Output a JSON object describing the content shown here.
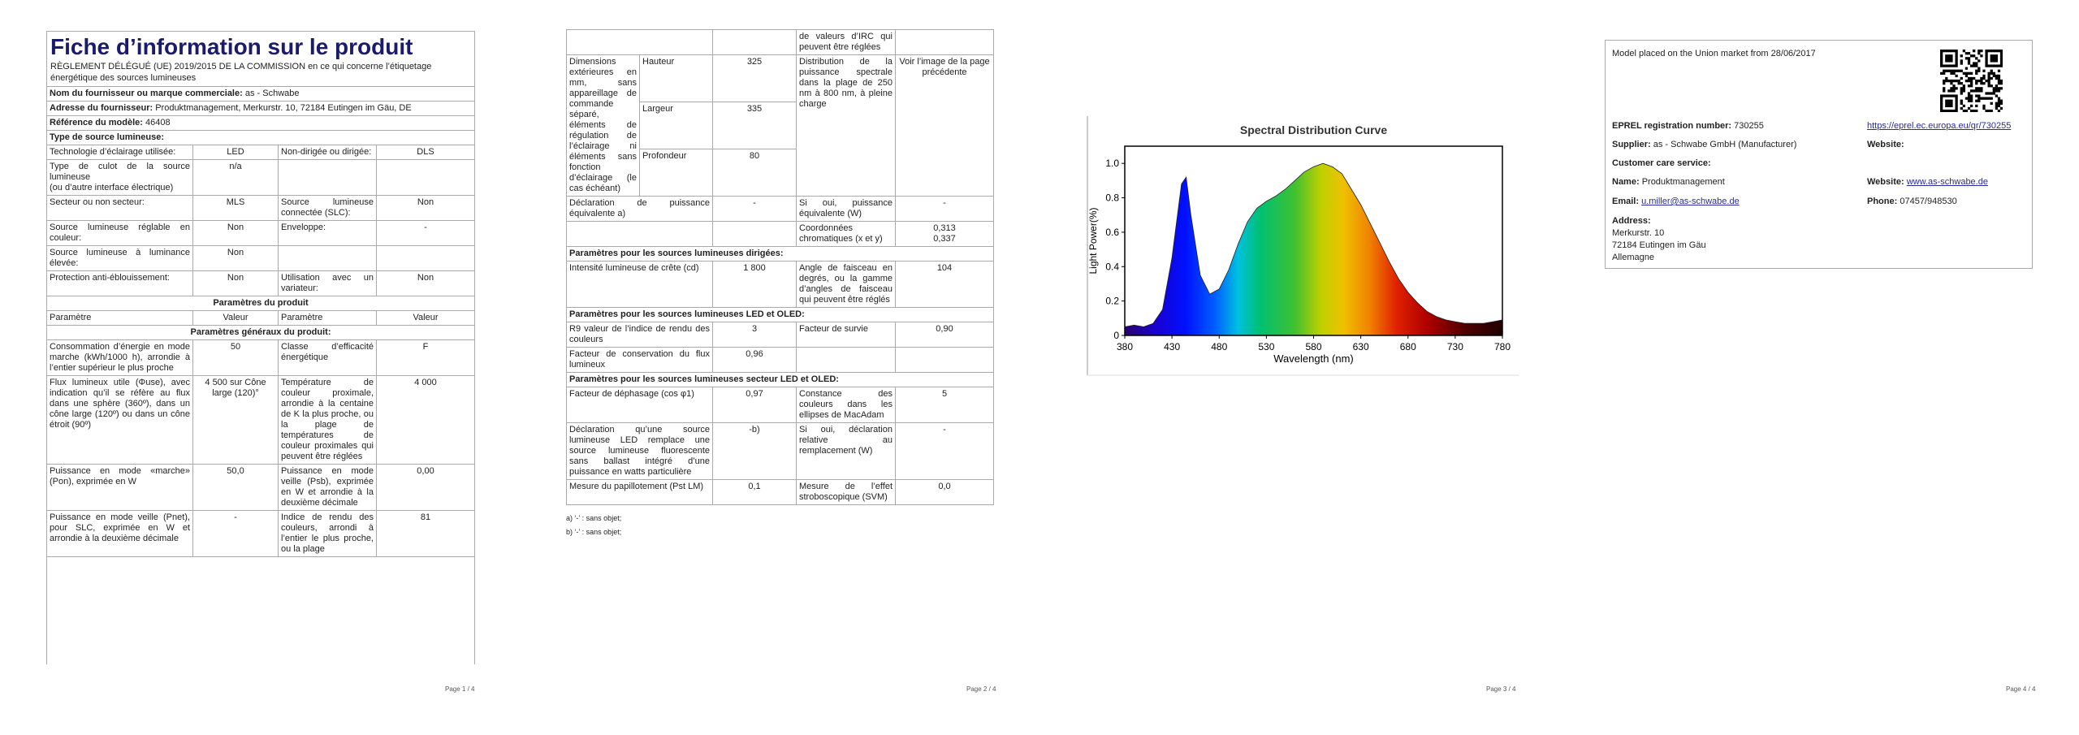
{
  "page1": {
    "title": "Fiche d’information sur le produit",
    "regulation": "RÈGLEMENT DÉLÉGUÉ (UE) 2019/2015 DE LA COMMISSION en ce qui concerne l’étiquetage énergétique des sources lumineuses",
    "rows": [
      {
        "label": "Nom du fournisseur ou marque commerciale:",
        "value": "as - Schwabe"
      },
      {
        "label": "Adresse du fournisseur:",
        "value": "Produktmanagement, Merkurstr. 10, 72184 Eutingen im Gäu, DE"
      },
      {
        "label": "Référence du modèle:",
        "value": "46408"
      },
      {
        "section": "Type de source lumineuse:"
      },
      [
        "Technologie d’éclairage utilisée:",
        "LED",
        "Non-dirigée ou dirigée:",
        "DLS"
      ],
      [
        [
          "Type de culot de la source lumineuse",
          "(ou d’autre interface électrique)"
        ],
        "n/a",
        null,
        null
      ],
      [
        "Secteur ou non secteur:",
        "MLS",
        "Source lumineuse connectée (SLC):",
        "Non"
      ],
      [
        "Source lumineuse réglable en couleur:",
        "Non",
        "Enveloppe:",
        "-"
      ],
      [
        "Source lumineuse à luminance élevée:",
        "Non",
        null,
        null
      ],
      [
        "Protection anti-éblouissement:",
        "Non",
        "Utilisation avec un variateur:",
        "Non"
      ],
      {
        "group": "Paramètres du produit"
      },
      [
        "Paramètre",
        "Valeur",
        "Paramètre",
        "Valeur"
      ],
      {
        "group": "Paramètres généraux du produit:"
      },
      [
        "Consommation d’énergie en mode marche (kWh/1000 h), arrondie à l’entier supérieur le plus proche",
        "50",
        "Classe d’efficacité énergétique",
        "F"
      ],
      [
        "Flux lumineux utile (Φuse), avec indication qu’il se réfère au flux dans une sphère (360º), dans un cône large (120º) ou dans un cône étroit (90º)",
        "4 500 sur Cône large (120)°",
        "Température de couleur proximale, arrondie à la centaine de K la plus proche, ou la plage de températures de couleur proximales qui peuvent être réglées",
        "4 000"
      ],
      [
        "Puissance en mode «marche» (Pon), exprimée en W",
        "50,0",
        "Puissance en mode veille (Psb), exprimée en W et arrondie à la deuxième décimale",
        "0,00"
      ],
      [
        "Puissance en mode veille (Pnet), pour SLC, exprimée en W et arrondie à la deuxième décimale",
        "-",
        "Indice de rendu des couleurs, arrondi à l’entier le plus proche, ou la plage",
        "81"
      ]
    ],
    "footer": "Page 1 / 4"
  },
  "page2": {
    "rows": [
      [
        null,
        null,
        "de valeurs d’IRC qui peuvent être réglées",
        null
      ],
      {
        "dims": {
          "label": "Dimensions extérieures en mm, sans appareillage de commande séparé, éléments de régulation de l’éclairage ni éléments sans fonction d’éclairage (le cas échéant)",
          "items": [
            {
              "name": "Hauteur",
              "value": "325"
            },
            {
              "name": "Largeur",
              "value": "335"
            },
            {
              "name": "Profondeur",
              "value": "80"
            }
          ],
          "label2": "Distribution de la puissance spectrale dans la plage de 250 nm à 800 nm, à pleine charge",
          "value2": "Voir l’image de la page précédente"
        }
      },
      [
        "Déclaration de puissance équivalente a)",
        "-",
        "Si oui, puissance équivalente (W)",
        "-"
      ],
      [
        null,
        null,
        "Coordonnées chromatiques (x et y)",
        [
          "0,313",
          "0,337"
        ]
      ],
      {
        "section": "Paramètres pour les sources lumineuses dirigées:"
      },
      [
        "Intensité lumineuse de crête (cd)",
        "1 800",
        "Angle de faisceau en degrés, ou la gamme d’angles de faisceau qui peuvent être réglés",
        "104"
      ],
      {
        "section": "Paramètres pour les sources lumineuses LED et OLED:"
      },
      [
        "R9 valeur de l’indice de rendu des couleurs",
        "3",
        "Facteur de survie",
        "0,90"
      ],
      [
        "Facteur de conservation du flux lumineux",
        "0,96",
        null,
        null
      ],
      {
        "section": "Paramètres pour les sources lumineuses secteur LED et OLED:"
      },
      [
        "Facteur de déphasage (cos φ1)",
        "0,97",
        "Constance des couleurs dans les ellipses de MacAdam",
        "5"
      ],
      [
        "Déclaration qu’une source lumineuse LED remplace une source lumineuse fluorescente sans ballast intégré d’une puissance en watts particulière",
        "-b)",
        "Si oui, déclaration relative au remplacement (W)",
        "-"
      ],
      [
        "Mesure du papillotement (Pst LM)",
        "0,1",
        "Mesure de l’effet stroboscopique (SVM)",
        "0,0"
      ]
    ],
    "footnotes": [
      "a) ‘-’ : sans objet;",
      "b) ‘-’ : sans objet;"
    ],
    "footer": "Page 2 / 4"
  },
  "chart_data": {
    "type": "area",
    "title": "Spectral Distribution Curve",
    "x_label": "Wavelength  (nm)",
    "y_label": "Light Power(%)",
    "x": [
      380,
      390,
      400,
      410,
      420,
      430,
      440,
      445,
      450,
      460,
      470,
      480,
      490,
      500,
      510,
      520,
      530,
      540,
      550,
      560,
      570,
      580,
      590,
      600,
      610,
      620,
      630,
      640,
      650,
      660,
      670,
      680,
      690,
      700,
      710,
      720,
      730,
      740,
      750,
      760,
      770,
      780
    ],
    "values": [
      0.05,
      0.06,
      0.05,
      0.07,
      0.15,
      0.45,
      0.88,
      0.92,
      0.7,
      0.35,
      0.24,
      0.27,
      0.38,
      0.53,
      0.66,
      0.74,
      0.78,
      0.81,
      0.85,
      0.9,
      0.95,
      0.98,
      1.0,
      0.98,
      0.94,
      0.85,
      0.76,
      0.65,
      0.54,
      0.43,
      0.33,
      0.25,
      0.19,
      0.14,
      0.11,
      0.09,
      0.08,
      0.07,
      0.07,
      0.07,
      0.08,
      0.09
    ],
    "xlim": [
      380,
      780
    ],
    "xticks": [
      380,
      430,
      480,
      530,
      580,
      630,
      680,
      730,
      780
    ],
    "ylim": [
      0,
      1.1
    ],
    "yticks": [
      0,
      0.2,
      0.4,
      0.6,
      0.8,
      {
        "value": 1,
        "label": "1.0"
      }
    ]
  },
  "page3": {
    "footer": "Page 3 / 4"
  },
  "page4": {
    "placed": "Model placed on the Union market from 28/06/2017",
    "eprel_label": "EPREL registration number:",
    "eprel": "730255",
    "eprel_link": "https://eprel.ec.europa.eu/qr/730255",
    "supplier_label": "Supplier:",
    "supplier": "as - Schwabe GmbH (Manufacturer)",
    "website_label": "Website:",
    "care": "Customer care service:",
    "name_label": "Name:",
    "name": "Produktmanagement",
    "website2_label": "Website:",
    "website2": "www.as-schwabe.de",
    "email_label": "Email:",
    "email": "u.miller@as-schwabe.de",
    "phone_label": "Phone:",
    "phone": "07457/948530",
    "address_label": "Address:",
    "address": [
      "Merkurstr. 10",
      "72184 Eutingen im Gäu",
      "Allemagne"
    ],
    "footer": "Page 4 / 4"
  }
}
